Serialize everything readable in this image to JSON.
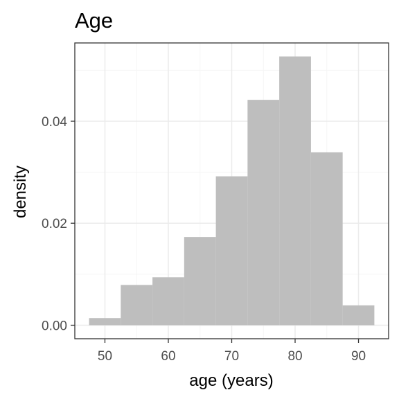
{
  "chart_data": {
    "type": "bar",
    "title": "Age",
    "xlabel": "age (years)",
    "ylabel": "density",
    "bin_width": 5,
    "bins": [
      {
        "start": 47.5,
        "end": 52.5,
        "density": 0.0014
      },
      {
        "start": 52.5,
        "end": 57.5,
        "density": 0.0079
      },
      {
        "start": 57.5,
        "end": 62.5,
        "density": 0.0094
      },
      {
        "start": 62.5,
        "end": 67.5,
        "density": 0.0173
      },
      {
        "start": 67.5,
        "end": 72.5,
        "density": 0.0292
      },
      {
        "start": 72.5,
        "end": 77.5,
        "density": 0.0442
      },
      {
        "start": 77.5,
        "end": 82.5,
        "density": 0.0527
      },
      {
        "start": 82.5,
        "end": 87.5,
        "density": 0.0339
      },
      {
        "start": 87.5,
        "end": 92.5,
        "density": 0.0039
      }
    ],
    "xlim": [
      45.25,
      94.75
    ],
    "ylim": [
      -0.00265,
      0.05535
    ],
    "x_ticks": [
      50,
      60,
      70,
      80,
      90
    ],
    "x_tick_labels": [
      "50",
      "60",
      "70",
      "80",
      "90"
    ],
    "y_ticks": [
      0,
      0.02,
      0.04
    ],
    "y_tick_labels": [
      "0.00",
      "0.02",
      "0.04"
    ],
    "grid": true,
    "colors": {
      "bar_fill": "#bebebe",
      "panel_border": "#333333",
      "major_grid": "#ebebeb",
      "minor_grid": "#f5f5f5",
      "tick_text": "#4d4d4d"
    }
  }
}
